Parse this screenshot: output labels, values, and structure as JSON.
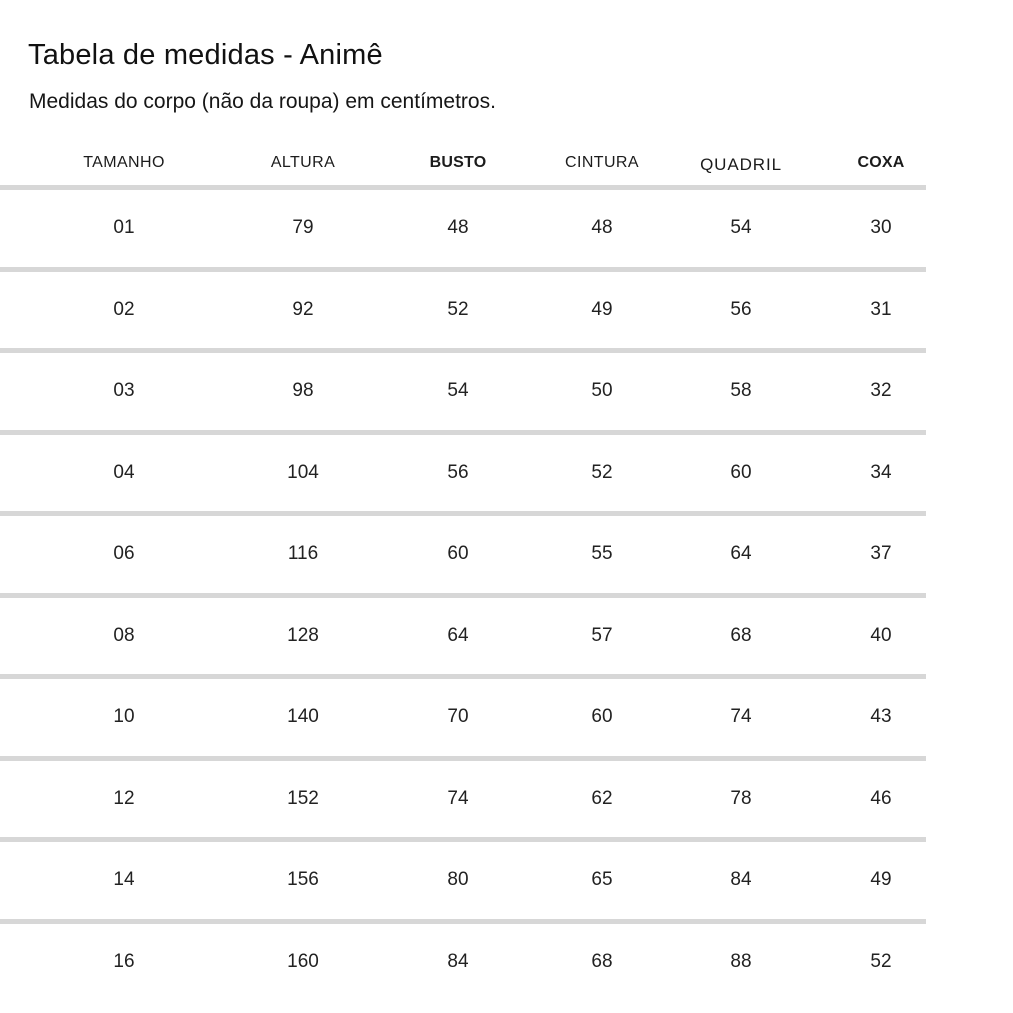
{
  "page": {
    "title": "Tabela de medidas - Animê",
    "subtitle": "Medidas do corpo (não da roupa) em centímetros."
  },
  "table": {
    "headers": [
      {
        "label": "TAMANHO",
        "style": "regular"
      },
      {
        "label": "ALTURA",
        "style": "regular"
      },
      {
        "label": "BUSTO",
        "style": "bold"
      },
      {
        "label": "CINTURA",
        "style": "regular"
      },
      {
        "label": "QUADRIL",
        "style": "light"
      },
      {
        "label": "COXA",
        "style": "bold"
      }
    ],
    "rows": [
      [
        "01",
        "79",
        "48",
        "48",
        "54",
        "30"
      ],
      [
        "02",
        "92",
        "52",
        "49",
        "56",
        "31"
      ],
      [
        "03",
        "98",
        "54",
        "50",
        "58",
        "32"
      ],
      [
        "04",
        "104",
        "56",
        "52",
        "60",
        "34"
      ],
      [
        "06",
        "116",
        "60",
        "55",
        "64",
        "37"
      ],
      [
        "08",
        "128",
        "64",
        "57",
        "68",
        "40"
      ],
      [
        "10",
        "140",
        "70",
        "60",
        "74",
        "43"
      ],
      [
        "12",
        "152",
        "74",
        "62",
        "78",
        "46"
      ],
      [
        "14",
        "156",
        "80",
        "65",
        "84",
        "49"
      ],
      [
        "16",
        "160",
        "84",
        "68",
        "88",
        "52"
      ]
    ]
  },
  "colors": {
    "divider": "#d7d7d7",
    "text": "#1e1e1e",
    "background": "#ffffff"
  },
  "chart_data": {
    "type": "table",
    "title": "Tabela de medidas - Animê",
    "subtitle": "Medidas do corpo (não da roupa) em centímetros.",
    "units": "centímetros",
    "columns": [
      "TAMANHO",
      "ALTURA",
      "BUSTO",
      "CINTURA",
      "QUADRIL",
      "COXA"
    ],
    "rows": [
      [
        "01",
        79,
        48,
        48,
        54,
        30
      ],
      [
        "02",
        92,
        52,
        49,
        56,
        31
      ],
      [
        "03",
        98,
        54,
        50,
        58,
        32
      ],
      [
        "04",
        104,
        56,
        52,
        60,
        34
      ],
      [
        "06",
        116,
        60,
        55,
        64,
        37
      ],
      [
        "08",
        128,
        64,
        57,
        68,
        40
      ],
      [
        "10",
        140,
        70,
        60,
        74,
        43
      ],
      [
        "12",
        152,
        74,
        62,
        78,
        46
      ],
      [
        "14",
        156,
        80,
        65,
        84,
        49
      ],
      [
        "16",
        160,
        84,
        68,
        88,
        52
      ]
    ],
    "layout_hints": {
      "bold_columns": [
        "BUSTO",
        "COXA"
      ],
      "row_divider": true,
      "grid": "horizontal-only"
    }
  }
}
